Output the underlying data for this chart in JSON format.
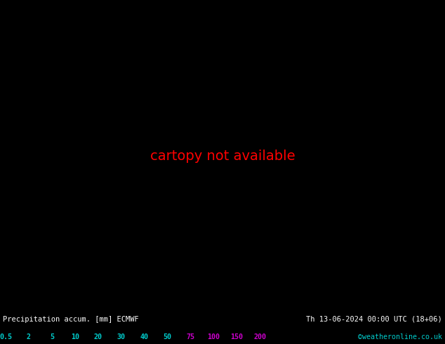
{
  "title_left": "Precipitation accum. [mm] ECMWF",
  "title_right": "Th 13-06-2024 00:00 UTC (18+06)",
  "credit": "©weatheronline.co.uk",
  "colorbar_levels": [
    0.5,
    2,
    5,
    10,
    20,
    30,
    40,
    50,
    75,
    100,
    150,
    200
  ],
  "colorbar_label_colors": [
    "#00cccc",
    "#00cccc",
    "#00cccc",
    "#00cccc",
    "#00cccc",
    "#00cccc",
    "#00cccc",
    "#00cccc",
    "#cc00cc",
    "#cc00cc",
    "#cc00cc",
    "#cc00cc"
  ],
  "ocean_color": "#d8d8d8",
  "land_color": "#c8e8a0",
  "border_color": "#888888",
  "figsize": [
    6.34,
    4.9
  ],
  "dpi": 100,
  "map_extent": [
    -45,
    50,
    25,
    75
  ],
  "blue_contour_color": "#0000cc",
  "red_contour_color": "#cc0000",
  "prec_colors": [
    "#aaddff",
    "#88ccff",
    "#66bbff",
    "#44aaff",
    "#2299ff"
  ],
  "bottom_bg": "#000000"
}
